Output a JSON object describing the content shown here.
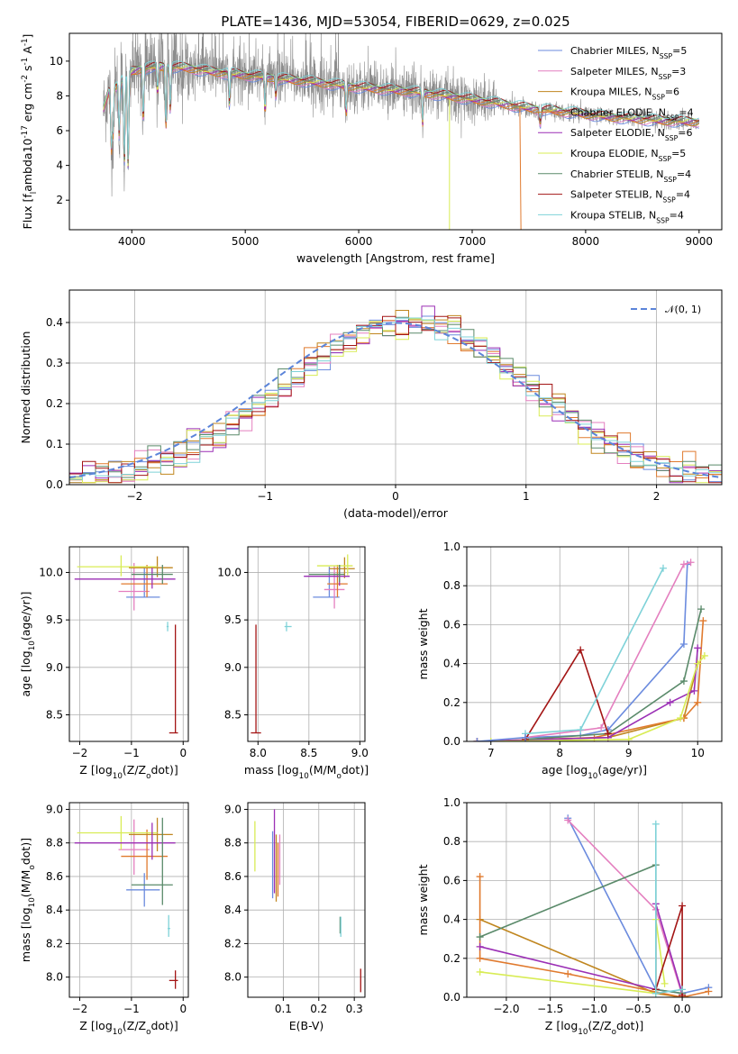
{
  "colors": [
    "#6b8bde",
    "#e47fbf",
    "#c0861f",
    "#e07a2e",
    "#9b2fb5",
    "#d8ec55",
    "#5a8a6a",
    "#a31515",
    "#7ed2d8"
  ],
  "spectrum_noise_color": "#8c8c8c",
  "chart_data": [
    {
      "id": "spectrum",
      "type": "line",
      "title": "PLATE=1436, MJD=53054, FIBERID=0629, z=0.025",
      "xlabel": "wavelength [Angstrom, rest frame]",
      "ylabel": "Flux [f$_\\lambda$10$^{-17}$ erg cm$^{-2}$ s$^{-1}$ A$^{-1}$]",
      "xlim": [
        3450,
        9200
      ],
      "ylim": [
        0.3,
        11.6
      ],
      "xticks": [
        4000,
        5000,
        6000,
        7000,
        8000,
        9000
      ],
      "yticks": [
        2,
        4,
        6,
        8,
        10
      ],
      "grid": false,
      "legend_position": "upper-right",
      "legend": [
        "Chabrier MILES, N$_{SSP}$=5",
        "Salpeter MILES, N$_{SSP}$=3",
        "Kroupa MILES, N$_{SSP}$=6",
        "Chabrier ELODIE, N$_{SSP}$=4",
        "Salpeter ELODIE, N$_{SSP}$=6",
        "Kroupa ELODIE, N$_{SSP}$=5",
        "Chabrier STELIB, N$_{SSP}$=4",
        "Salpeter STELIB, N$_{SSP}$=4",
        "Kroupa STELIB, N$_{SSP}$=4"
      ],
      "continuum": {
        "x": [
          3750,
          3800,
          3900,
          4000,
          4100,
          4300,
          4500,
          4700,
          5000,
          5300,
          5600,
          6000,
          6400,
          6800,
          7200,
          7500,
          7800,
          8200,
          8600,
          9000
        ],
        "y": [
          7.2,
          8.3,
          8.8,
          9.4,
          9.6,
          9.7,
          9.6,
          9.4,
          9.2,
          9.0,
          8.8,
          8.5,
          8.3,
          8.0,
          7.6,
          7.3,
          7.1,
          6.8,
          6.6,
          6.5
        ]
      }
    },
    {
      "id": "residuals",
      "type": "step",
      "xlabel": "(data-model)/error",
      "ylabel": "Normed distribution",
      "xlim": [
        -2.5,
        2.5
      ],
      "ylim": [
        0,
        0.48
      ],
      "xticks": [
        -2,
        -1,
        0,
        1,
        2
      ],
      "yticks": [
        0.0,
        0.1,
        0.2,
        0.3,
        0.4
      ],
      "grid": true,
      "legend_position": "upper-right",
      "legend": [
        "$\\mathcal{N}(0,1)$"
      ],
      "reference_curve": {
        "name": "N(0,1)",
        "mean": 0,
        "sigma": 1,
        "color": "#5b84d9"
      }
    },
    {
      "id": "age_vs_Z",
      "type": "errorbar",
      "xlabel": "Z [log$_{10}$($Z/Z_\\odot$)]",
      "ylabel": "age  [log$_{10}$($age/yr$)]",
      "xlim": [
        -2.2,
        0.1
      ],
      "ylim": [
        8.22,
        10.27
      ],
      "xticks": [
        -2,
        -1,
        0
      ],
      "yticks": [
        8.5,
        9.0,
        9.5,
        10.0
      ],
      "grid": true,
      "points": [
        {
          "c": 0,
          "x": -0.75,
          "xerr": [
            0.35,
            0.3
          ],
          "y": 9.74,
          "yerr": [
            0.0,
            0.32
          ]
        },
        {
          "c": 1,
          "x": -0.95,
          "xerr": [
            0.3,
            0.3
          ],
          "y": 9.8,
          "yerr": [
            0.2,
            0.3
          ]
        },
        {
          "c": 3,
          "x": -0.7,
          "xerr": [
            0.5,
            0.4
          ],
          "y": 9.88,
          "yerr": [
            0.14,
            0.2
          ]
        },
        {
          "c": 2,
          "x": -0.5,
          "xerr": [
            0.55,
            0.3
          ],
          "y": 10.05,
          "yerr": [
            0.1,
            0.12
          ]
        },
        {
          "c": 5,
          "x": -1.2,
          "xerr": [
            0.85,
            0.7
          ],
          "y": 10.06,
          "yerr": [
            0.1,
            0.12
          ]
        },
        {
          "c": 4,
          "x": -0.6,
          "xerr": [
            1.5,
            0.45
          ],
          "y": 9.93,
          "yerr": [
            0.1,
            0.12
          ]
        },
        {
          "c": 6,
          "x": -0.4,
          "xerr": [
            0.6,
            0.2
          ],
          "y": 9.98,
          "yerr": [
            0.1,
            0.1
          ]
        },
        {
          "c": 8,
          "x": -0.3,
          "xerr": [
            0.02,
            0.02
          ],
          "y": 9.43,
          "yerr": [
            0.05,
            0.05
          ]
        },
        {
          "c": 7,
          "x": -0.15,
          "xerr": [
            0.12,
            0.05
          ],
          "y": 8.31,
          "yerr": [
            0.0,
            1.14
          ]
        }
      ]
    },
    {
      "id": "age_vs_mass",
      "type": "errorbar",
      "xlabel": "mass [log$_{10}$($M/M_\\odot$)]",
      "ylabel": "",
      "xlim": [
        7.9,
        9.05
      ],
      "ylim": [
        8.22,
        10.27
      ],
      "xticks": [
        8.0,
        8.5,
        9.0
      ],
      "yticks": [
        8.5,
        9.0,
        9.5,
        10.0
      ],
      "grid": true,
      "points": [
        {
          "c": 0,
          "x": 8.7,
          "xerr": [
            0.16,
            0.1
          ],
          "y": 9.74,
          "yerr": [
            0.0,
            0.32
          ]
        },
        {
          "c": 1,
          "x": 8.75,
          "xerr": [
            0.1,
            0.1
          ],
          "y": 9.82,
          "yerr": [
            0.2,
            0.25
          ]
        },
        {
          "c": 3,
          "x": 8.78,
          "xerr": [
            0.1,
            0.1
          ],
          "y": 9.88,
          "yerr": [
            0.14,
            0.2
          ]
        },
        {
          "c": 2,
          "x": 8.85,
          "xerr": [
            0.15,
            0.1
          ],
          "y": 10.04,
          "yerr": [
            0.1,
            0.12
          ]
        },
        {
          "c": 5,
          "x": 8.88,
          "xerr": [
            0.3,
            0.05
          ],
          "y": 10.07,
          "yerr": [
            0.1,
            0.12
          ]
        },
        {
          "c": 4,
          "x": 8.8,
          "xerr": [
            0.35,
            0.1
          ],
          "y": 9.96,
          "yerr": [
            0.1,
            0.12
          ]
        },
        {
          "c": 6,
          "x": 8.8,
          "xerr": [
            0.3,
            0.05
          ],
          "y": 9.98,
          "yerr": [
            0.08,
            0.1
          ]
        },
        {
          "c": 8,
          "x": 8.28,
          "xerr": [
            0.02,
            0.05
          ],
          "y": 9.43,
          "yerr": [
            0.05,
            0.05
          ]
        },
        {
          "c": 7,
          "x": 7.98,
          "xerr": [
            0.05,
            0.05
          ],
          "y": 8.31,
          "yerr": [
            0.0,
            1.14
          ]
        }
      ]
    },
    {
      "id": "mass_weight_vs_age",
      "type": "line",
      "xlabel": "age  [log$_{10}$($age/yr$)]",
      "ylabel": "mass weight",
      "xlim": [
        6.65,
        10.35
      ],
      "ylim": [
        0,
        1.0
      ],
      "xticks": [
        7,
        8,
        9,
        10
      ],
      "yticks": [
        0.0,
        0.2,
        0.4,
        0.6,
        0.8,
        1.0
      ],
      "grid": true,
      "series": [
        {
          "c": 0,
          "x": [
            7.5,
            8.3,
            8.7,
            9.8,
            9.85
          ],
          "y": [
            0.02,
            0.03,
            0.06,
            0.5,
            0.91
          ]
        },
        {
          "c": 1,
          "x": [
            7.5,
            8.6,
            9.8,
            9.9
          ],
          "y": [
            0.02,
            0.07,
            0.91,
            0.92
          ]
        },
        {
          "c": 2,
          "x": [
            6.8,
            8.7,
            9.8,
            10.0
          ],
          "y": [
            0.0,
            0.02,
            0.12,
            0.4
          ]
        },
        {
          "c": 3,
          "x": [
            6.8,
            8.5,
            9.8,
            10.0,
            10.08
          ],
          "y": [
            0.0,
            0.02,
            0.12,
            0.2,
            0.62
          ]
        },
        {
          "c": 4,
          "x": [
            6.8,
            8.7,
            9.6,
            9.95,
            10.0
          ],
          "y": [
            0.0,
            0.02,
            0.2,
            0.26,
            0.48
          ]
        },
        {
          "c": 5,
          "x": [
            7.0,
            9.0,
            9.75,
            10.0,
            10.1
          ],
          "y": [
            0.0,
            0.01,
            0.12,
            0.4,
            0.44
          ]
        },
        {
          "c": 6,
          "x": [
            7.5,
            8.7,
            9.8,
            10.05
          ],
          "y": [
            0.01,
            0.04,
            0.31,
            0.68
          ]
        },
        {
          "c": 7,
          "x": [
            7.5,
            8.3,
            8.7
          ],
          "y": [
            0.01,
            0.47,
            0.04
          ]
        },
        {
          "c": 8,
          "x": [
            7.5,
            8.3,
            9.5
          ],
          "y": [
            0.04,
            0.06,
            0.89
          ]
        },
        {
          "c": 0,
          "x": [
            6.8,
            7.5
          ],
          "y": [
            0.0,
            0.02
          ]
        }
      ]
    },
    {
      "id": "mass_vs_Z",
      "type": "errorbar",
      "xlabel": "Z [log$_{10}$($Z/Z_\\odot$)]",
      "ylabel": "mass [log$_{10}$($M/M_\\odot$)]",
      "xlim": [
        -2.2,
        0.1
      ],
      "ylim": [
        7.88,
        9.04
      ],
      "xticks": [
        -2,
        -1,
        0
      ],
      "yticks": [
        8.0,
        8.2,
        8.4,
        8.6,
        8.8,
        9.0
      ],
      "grid": true,
      "points": [
        {
          "c": 0,
          "x": -0.75,
          "xerr": [
            0.35,
            0.3
          ],
          "y": 8.52,
          "yerr": [
            0.1,
            0.1
          ]
        },
        {
          "c": 1,
          "x": -0.95,
          "xerr": [
            0.3,
            0.3
          ],
          "y": 8.76,
          "yerr": [
            0.15,
            0.18
          ]
        },
        {
          "c": 3,
          "x": -0.7,
          "xerr": [
            0.5,
            0.4
          ],
          "y": 8.72,
          "yerr": [
            0.14,
            0.16
          ]
        },
        {
          "c": 2,
          "x": -0.5,
          "xerr": [
            0.55,
            0.3
          ],
          "y": 8.85,
          "yerr": [
            0.1,
            0.1
          ]
        },
        {
          "c": 5,
          "x": -1.2,
          "xerr": [
            0.85,
            0.7
          ],
          "y": 8.86,
          "yerr": [
            0.1,
            0.1
          ]
        },
        {
          "c": 4,
          "x": -0.6,
          "xerr": [
            1.5,
            0.45
          ],
          "y": 8.8,
          "yerr": [
            0.1,
            0.12
          ]
        },
        {
          "c": 6,
          "x": -0.4,
          "xerr": [
            0.6,
            0.2
          ],
          "y": 8.55,
          "yerr": [
            0.12,
            0.4
          ]
        },
        {
          "c": 8,
          "x": -0.28,
          "xerr": [
            0.02,
            0.03
          ],
          "y": 8.29,
          "yerr": [
            0.05,
            0.08
          ]
        },
        {
          "c": 7,
          "x": -0.15,
          "xerr": [
            0.12,
            0.05
          ],
          "y": 7.98,
          "yerr": [
            0.05,
            0.06
          ]
        }
      ]
    },
    {
      "id": "mass_vs_EBV",
      "type": "errorbar",
      "xlabel": "E(B-V)",
      "ylabel": "",
      "xlim": [
        0.0,
        0.33
      ],
      "ylim": [
        7.88,
        9.04
      ],
      "xticks": [
        0.1,
        0.2,
        0.3
      ],
      "yticks": [
        8.0,
        8.2,
        8.4,
        8.6,
        8.8,
        9.0
      ],
      "grid": true,
      "points": [
        {
          "c": 0,
          "x": 0.07,
          "xerr": [
            0,
            0
          ],
          "y": 8.72,
          "yerr": [
            0.25,
            0.15
          ]
        },
        {
          "c": 1,
          "x": 0.09,
          "xerr": [
            0,
            0
          ],
          "y": 8.7,
          "yerr": [
            0.15,
            0.15
          ]
        },
        {
          "c": 2,
          "x": 0.08,
          "xerr": [
            0,
            0
          ],
          "y": 8.65,
          "yerr": [
            0.2,
            0.2
          ]
        },
        {
          "c": 3,
          "x": 0.085,
          "xerr": [
            0,
            0
          ],
          "y": 8.7,
          "yerr": [
            0.22,
            0.1
          ]
        },
        {
          "c": 4,
          "x": 0.075,
          "xerr": [
            0,
            0
          ],
          "y": 8.75,
          "yerr": [
            0.25,
            0.25
          ]
        },
        {
          "c": 5,
          "x": 0.02,
          "xerr": [
            0,
            0
          ],
          "y": 8.78,
          "yerr": [
            0.15,
            0.15
          ]
        },
        {
          "c": 6,
          "x": 0.26,
          "xerr": [
            0,
            0
          ],
          "y": 8.3,
          "yerr": [
            0.04,
            0.06
          ]
        },
        {
          "c": 8,
          "x": 0.262,
          "xerr": [
            0,
            0
          ],
          "y": 8.29,
          "yerr": [
            0.05,
            0.07
          ]
        },
        {
          "c": 7,
          "x": 0.318,
          "xerr": [
            0,
            0
          ],
          "y": 7.98,
          "yerr": [
            0.07,
            0.07
          ]
        }
      ]
    },
    {
      "id": "mass_weight_vs_Z",
      "type": "line",
      "xlabel": "Z [log$_{10}$($Z/Z_\\odot$)]",
      "ylabel": "mass weight",
      "xlim": [
        -2.45,
        0.45
      ],
      "ylim": [
        0,
        1.0
      ],
      "xticks": [
        -2.0,
        -1.5,
        -1.0,
        -0.5,
        0.0
      ],
      "yticks": [
        0.0,
        0.2,
        0.4,
        0.6,
        0.8,
        1.0
      ],
      "grid": true,
      "series": [
        {
          "c": 0,
          "x": [
            -1.3,
            -0.3,
            0.0,
            0.3
          ],
          "y": [
            0.92,
            0.04,
            0.02,
            0.05
          ]
        },
        {
          "c": 1,
          "x": [
            -1.3,
            -0.3,
            0.0
          ],
          "y": [
            0.91,
            0.45,
            0.01
          ]
        },
        {
          "c": 2,
          "x": [
            -2.3,
            -0.3,
            0.0
          ],
          "y": [
            0.4,
            0.02,
            0.0
          ]
        },
        {
          "c": 3,
          "x": [
            -2.3,
            -2.3,
            -1.3,
            0.0,
            0.3
          ],
          "y": [
            0.62,
            0.2,
            0.12,
            0.0,
            0.03
          ]
        },
        {
          "c": 4,
          "x": [
            -2.3,
            -0.3,
            -0.3,
            0.0
          ],
          "y": [
            0.26,
            0.04,
            0.48,
            0.02
          ]
        },
        {
          "c": 5,
          "x": [
            -2.3,
            -0.3,
            -0.3,
            -0.2
          ],
          "y": [
            0.13,
            0.02,
            0.4,
            0.07
          ]
        },
        {
          "c": 6,
          "x": [
            -2.3,
            -0.3,
            -0.3,
            0.0
          ],
          "y": [
            0.31,
            0.68,
            0.04,
            0.02
          ]
        },
        {
          "c": 7,
          "x": [
            -0.3,
            0.0,
            0.0
          ],
          "y": [
            0.04,
            0.47,
            0.01
          ]
        },
        {
          "c": 8,
          "x": [
            -0.3,
            -0.3,
            0.0
          ],
          "y": [
            0.89,
            0.02,
            0.04
          ]
        }
      ]
    }
  ]
}
